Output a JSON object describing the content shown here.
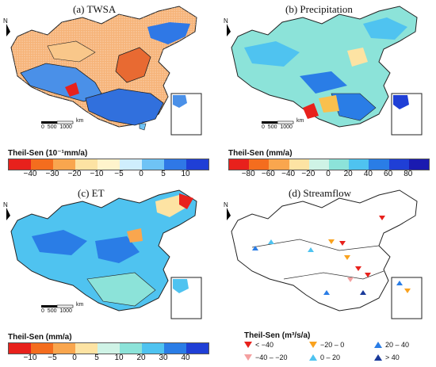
{
  "panels": [
    {
      "id": "a",
      "title": "(a)  TWSA",
      "legend_title": "Theil-Sen (10⁻¹mm/a)",
      "ticks": [
        "−40",
        "−30",
        "−20",
        "−10",
        "−5",
        "0",
        "5",
        "10"
      ],
      "colors": [
        "#e8211c",
        "#f46d1e",
        "#f9a64e",
        "#fde3a3",
        "#fff4cc",
        "#cfeefd",
        "#6fc3f5",
        "#2f78e6",
        "#1f3fd6"
      ]
    },
    {
      "id": "b",
      "title": "(b) Precipitation",
      "legend_title": "Theil-Sen (mm/a)",
      "ticks": [
        "−80",
        "−60",
        "−40",
        "−20",
        "0",
        "20",
        "40",
        "60",
        "80"
      ],
      "colors": [
        "#e8211c",
        "#f46d1e",
        "#f9a64e",
        "#fde3a3",
        "#cff3e6",
        "#8ce3d9",
        "#4fc3f0",
        "#2a7de6",
        "#1f3fd6",
        "#1a1ab0"
      ]
    },
    {
      "id": "c",
      "title": "(c) ET",
      "legend_title": "Theil-Sen (mm/a)",
      "ticks": [
        "−10",
        "−5",
        "0",
        "5",
        "10",
        "20",
        "30",
        "40"
      ],
      "colors": [
        "#e8211c",
        "#f46d1e",
        "#f9a64e",
        "#fde3a3",
        "#cff3e6",
        "#8ce3d9",
        "#4fc3f0",
        "#2a7de6",
        "#1f3fd6"
      ]
    },
    {
      "id": "d",
      "title": "(d)  Streamflow",
      "legend_title": "Theil-Sen (m³/s/a)"
    }
  ],
  "scale_bar": {
    "label": "km",
    "ticks": [
      "0",
      "500",
      "1000"
    ]
  },
  "north_label": "N",
  "streamflow_legend": [
    {
      "label": "< −40",
      "color": "#e8211c",
      "dir": "down"
    },
    {
      "label": "−40 – −20",
      "color": "#f4a0a0",
      "dir": "down"
    },
    {
      "label": "−20 – 0",
      "color": "#f9a21e",
      "dir": "down"
    },
    {
      "label": "0 – 20",
      "color": "#4fc3f0",
      "dir": "up"
    },
    {
      "label": "20 – 40",
      "color": "#2a7de6",
      "dir": "up"
    },
    {
      "label": "> 40",
      "color": "#1a3a9a",
      "dir": "up"
    }
  ]
}
